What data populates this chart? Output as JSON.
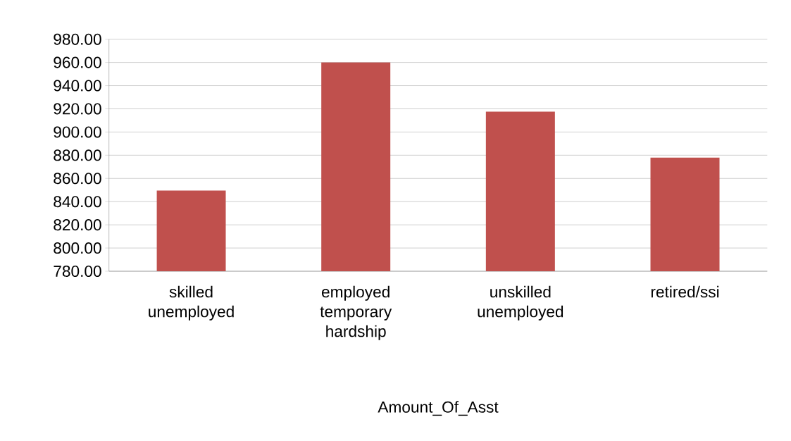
{
  "chart_data": {
    "type": "bar",
    "xlabel": "Amount_Of_Asst",
    "categories": [
      "skilled unemployed",
      "employed temporary hardship",
      "unskilled unemployed",
      "retired/ssi"
    ],
    "values": [
      849.5,
      960,
      917.5,
      878
    ],
    "color": "#c0504d",
    "ylim": [
      780,
      980
    ],
    "yticks": [
      {
        "value": 780,
        "label": "780.00"
      },
      {
        "value": 800,
        "label": "800.00"
      },
      {
        "value": 820,
        "label": "820.00"
      },
      {
        "value": 840,
        "label": "840.00"
      },
      {
        "value": 860,
        "label": "860.00"
      },
      {
        "value": 880,
        "label": "880.00"
      },
      {
        "value": 900,
        "label": "900.00"
      },
      {
        "value": 920,
        "label": "920.00"
      },
      {
        "value": 940,
        "label": "940.00"
      },
      {
        "value": 960,
        "label": "960.00"
      },
      {
        "value": 980,
        "label": "980.00"
      }
    ],
    "grid": "y"
  }
}
